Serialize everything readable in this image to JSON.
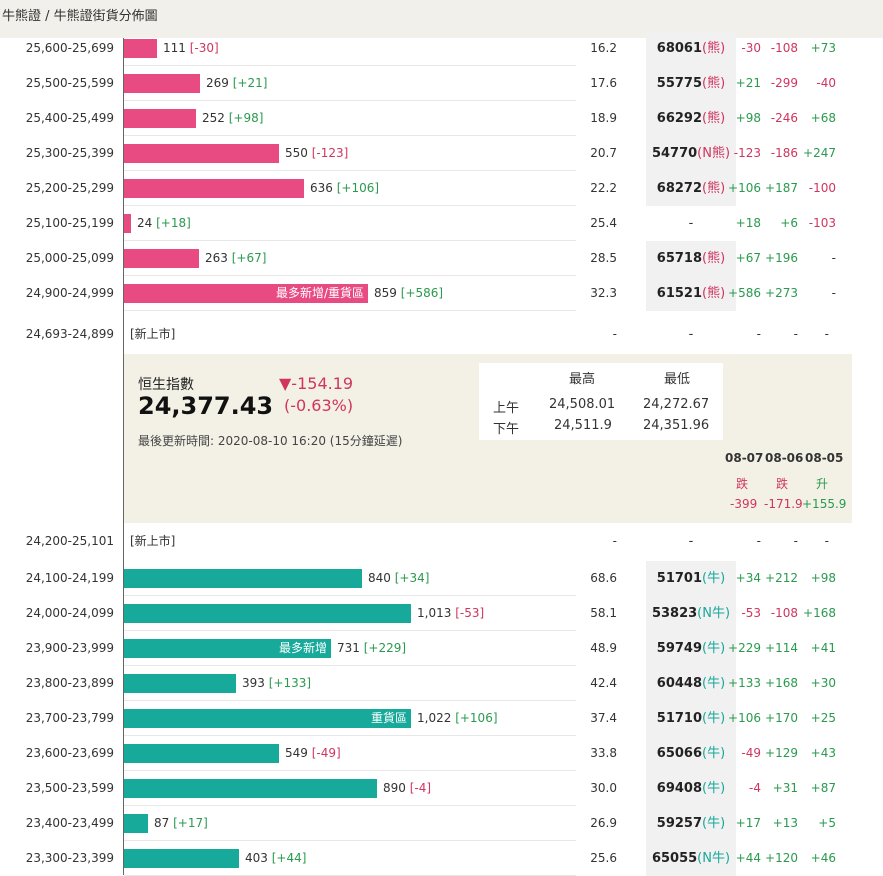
{
  "breadcrumb": "牛熊證 / 牛熊證街貨分佈圖",
  "bear_rows": [
    {
      "range": "25,600-25,699",
      "count": "111",
      "delta": "[-30]",
      "delta_sign": "down",
      "bar": 0.114,
      "label": "",
      "pct": "16.2",
      "code": "68061",
      "tag": "(熊)",
      "d1": "-30",
      "d2": "-108",
      "d3": "+73"
    },
    {
      "range": "25,500-25,599",
      "count": "269",
      "delta": "[+21]",
      "delta_sign": "up",
      "bar": 0.266,
      "label": "",
      "pct": "17.6",
      "code": "55775",
      "tag": "(熊)",
      "d1": "+21",
      "d2": "-299",
      "d3": "-40"
    },
    {
      "range": "25,400-25,499",
      "count": "252",
      "delta": "[+98]",
      "delta_sign": "up",
      "bar": 0.25,
      "label": "",
      "pct": "18.9",
      "code": "66292",
      "tag": "(熊)",
      "d1": "+98",
      "d2": "-246",
      "d3": "+68"
    },
    {
      "range": "25,300-25,399",
      "count": "550",
      "delta": "[-123]",
      "delta_sign": "down",
      "bar": 0.541,
      "label": "",
      "pct": "20.7",
      "code": "54770",
      "tag": "(N熊)",
      "d1": "-123",
      "d2": "-186",
      "d3": "+247"
    },
    {
      "range": "25,200-25,299",
      "count": "636",
      "delta": "[+106]",
      "delta_sign": "up",
      "bar": 0.627,
      "label": "",
      "pct": "22.2",
      "code": "68272",
      "tag": "(熊)",
      "d1": "+106",
      "d2": "+187",
      "d3": "-100"
    },
    {
      "range": "25,100-25,199",
      "count": "24",
      "delta": "[+18]",
      "delta_sign": "up",
      "bar": 0.025,
      "label": "",
      "pct": "25.4",
      "code": "-",
      "tag": "",
      "d1": "+18",
      "d2": "+6",
      "d3": "-103"
    },
    {
      "range": "25,000-25,099",
      "count": "263",
      "delta": "[+67]",
      "delta_sign": "up",
      "bar": 0.262,
      "label": "",
      "pct": "28.5",
      "code": "65718",
      "tag": "(熊)",
      "d1": "+67",
      "d2": "+196",
      "d3": "-"
    },
    {
      "range": "24,900-24,999",
      "count": "859",
      "delta": "[+586]",
      "delta_sign": "up",
      "bar": 0.85,
      "label": "最多新增/重貨區",
      "pct": "32.3",
      "code": "61521",
      "tag": "(熊)",
      "d1": "+586",
      "d2": "+273",
      "d3": "-"
    }
  ],
  "new_bear": {
    "range": "24,693-24,899",
    "label": "[新上市]",
    "pct": "-",
    "code": "-",
    "d1": "-",
    "d2": "-",
    "d3": "-"
  },
  "index": {
    "name": "恒生指數",
    "value": "24,377.43",
    "change": "▼-154.19",
    "change_pct": "(-0.63%)",
    "updated": "最後更新時間: 2020-08-10 16:20 (15分鐘延遲)",
    "hl_headers": [
      "最高",
      "最低"
    ],
    "am_label": "上午",
    "am_high": "24,508.01",
    "am_low": "24,272.67",
    "pm_label": "下午",
    "pm_high": "24,511.9",
    "pm_low": "24,351.96",
    "history": [
      {
        "date": "08-07",
        "dir": "跌",
        "value": "-399",
        "sign": "down"
      },
      {
        "date": "08-06",
        "dir": "跌",
        "value": "-171.9",
        "sign": "down"
      },
      {
        "date": "08-05",
        "dir": "升",
        "value": "+155.9",
        "sign": "up"
      }
    ]
  },
  "new_bull": {
    "range": "24,200-25,101",
    "label": "[新上市]",
    "pct": "-",
    "code": "-",
    "d1": "-",
    "d2": "-",
    "d3": "-"
  },
  "bull_rows": [
    {
      "range": "24,100-24,199",
      "count": "840",
      "delta": "[+34]",
      "delta_sign": "up",
      "bar": 0.83,
      "label": "",
      "pct": "68.6",
      "code": "51701",
      "tag": "(牛)",
      "d1": "+34",
      "d2": "+212",
      "d3": "+98"
    },
    {
      "range": "24,000-24,099",
      "count": "1,013",
      "delta": "[-53]",
      "delta_sign": "down",
      "bar": 1.0,
      "label": "",
      "pct": "58.1",
      "code": "53823",
      "tag": "(N牛)",
      "d1": "-53",
      "d2": "-108",
      "d3": "+168"
    },
    {
      "range": "23,900-23,999",
      "count": "731",
      "delta": "[+229]",
      "delta_sign": "up",
      "bar": 0.722,
      "label": "最多新增",
      "pct": "48.9",
      "code": "59749",
      "tag": "(牛)",
      "d1": "+229",
      "d2": "+114",
      "d3": "+41"
    },
    {
      "range": "23,800-23,899",
      "count": "393",
      "delta": "[+133]",
      "delta_sign": "up",
      "bar": 0.389,
      "label": "",
      "pct": "42.4",
      "code": "60448",
      "tag": "(牛)",
      "d1": "+133",
      "d2": "+168",
      "d3": "+30"
    },
    {
      "range": "23,700-23,799",
      "count": "1,022",
      "delta": "[+106]",
      "delta_sign": "up",
      "bar": 1.0,
      "label": "重貨區",
      "pct": "37.4",
      "code": "51710",
      "tag": "(牛)",
      "d1": "+106",
      "d2": "+170",
      "d3": "+25"
    },
    {
      "range": "23,600-23,699",
      "count": "549",
      "delta": "[-49]",
      "delta_sign": "down",
      "bar": 0.541,
      "label": "",
      "pct": "33.8",
      "code": "65066",
      "tag": "(牛)",
      "d1": "-49",
      "d2": "+129",
      "d3": "+43"
    },
    {
      "range": "23,500-23,599",
      "count": "890",
      "delta": "[-4]",
      "delta_sign": "down",
      "bar": 0.88,
      "label": "",
      "pct": "30.0",
      "code": "69408",
      "tag": "(牛)",
      "d1": "-4",
      "d2": "+31",
      "d3": "+87"
    },
    {
      "range": "23,400-23,499",
      "count": "87",
      "delta": "[+17]",
      "delta_sign": "up",
      "bar": 0.085,
      "label": "",
      "pct": "26.9",
      "code": "59257",
      "tag": "(牛)",
      "d1": "+17",
      "d2": "+13",
      "d3": "+5"
    },
    {
      "range": "23,300-23,399",
      "count": "403",
      "delta": "[+44]",
      "delta_sign": "up",
      "bar": 0.4,
      "label": "",
      "pct": "25.6",
      "code": "65055",
      "tag": "(N牛)",
      "d1": "+44",
      "d2": "+120",
      "d3": "+46"
    }
  ]
}
